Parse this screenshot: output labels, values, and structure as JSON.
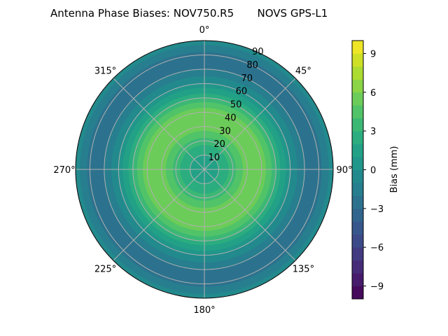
{
  "chart_data": {
    "type": "heatmap",
    "subtype": "polar-contour",
    "title": "Antenna Phase Biases: NOV750.R5       NOVS GPS-L1",
    "angular_ticks": [
      "0°",
      "45°",
      "90°",
      "135°",
      "180°",
      "225°",
      "270°",
      "315°"
    ],
    "angular_tick_values": [
      0,
      45,
      90,
      135,
      180,
      225,
      270,
      315
    ],
    "radial_ticks": [
      "10",
      "20",
      "30",
      "40",
      "50",
      "60",
      "70",
      "80",
      "90"
    ],
    "radial_tick_values": [
      10,
      20,
      30,
      40,
      50,
      60,
      70,
      80,
      90
    ],
    "rlim": [
      0,
      90
    ],
    "grid": true,
    "colorbar": {
      "label": "Bias (mm)",
      "range": [
        -10,
        10
      ],
      "levels_step": 1,
      "ticks": [
        "−9",
        "−6",
        "−3",
        "0",
        "3",
        "6",
        "9"
      ],
      "tick_values": [
        -9,
        -6,
        -3,
        0,
        3,
        6,
        9
      ],
      "colormap": "viridis"
    },
    "radial_profile": {
      "zenith_deg": [
        0,
        5,
        10,
        15,
        20,
        25,
        30,
        35,
        40,
        45,
        50,
        55,
        60,
        65,
        70,
        75,
        80,
        85,
        90
      ],
      "bias_mm": [
        1.5,
        1.5,
        2,
        2.5,
        3.5,
        4.5,
        5.5,
        5.8,
        5.5,
        4.5,
        3,
        1.5,
        0,
        -1,
        -2,
        -2.5,
        -2.5,
        -1.5,
        -0.5
      ]
    }
  }
}
